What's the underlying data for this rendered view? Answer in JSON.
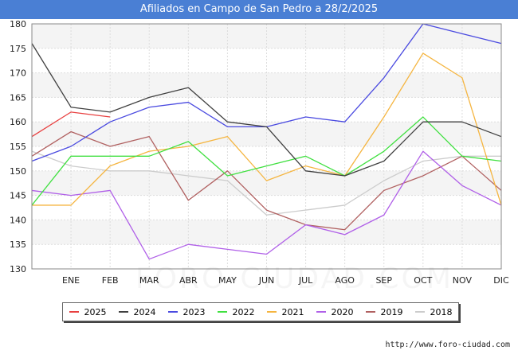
{
  "chart_data": {
    "type": "line",
    "title": "Afiliados en Campo de San Pedro a 28/2/2025",
    "xlabel": "",
    "ylabel": "",
    "x_ticks": [
      "",
      "ENE",
      "FEB",
      "MAR",
      "ABR",
      "MAY",
      "JUN",
      "JUL",
      "AGO",
      "SEP",
      "OCT",
      "NOV",
      "DIC"
    ],
    "ylim": [
      130,
      180
    ],
    "y_ticks": [
      130,
      135,
      140,
      145,
      150,
      155,
      160,
      165,
      170,
      175,
      180
    ],
    "grid": true,
    "legend_position": "bottom",
    "series": [
      {
        "name": "2025",
        "color": "#e84040",
        "values": [
          157,
          162,
          161
        ]
      },
      {
        "name": "2024",
        "color": "#404040",
        "values": [
          176,
          163,
          162,
          165,
          167,
          160,
          159,
          150,
          149,
          152,
          160,
          160,
          157
        ]
      },
      {
        "name": "2023",
        "color": "#4a4ae0",
        "values": [
          152,
          155,
          160,
          163,
          164,
          159,
          159,
          161,
          160,
          169,
          180,
          178,
          176
        ]
      },
      {
        "name": "2022",
        "color": "#40e040",
        "values": [
          143,
          153,
          153,
          153,
          156,
          149,
          151,
          153,
          149,
          154,
          161,
          153,
          152
        ]
      },
      {
        "name": "2021",
        "color": "#f5b540",
        "values": [
          143,
          143,
          151,
          154,
          155,
          157,
          148,
          151,
          149,
          161,
          174,
          169,
          143
        ]
      },
      {
        "name": "2020",
        "color": "#b060e8",
        "values": [
          146,
          145,
          146,
          132,
          135,
          134,
          133,
          139,
          137,
          141,
          154,
          147,
          143
        ]
      },
      {
        "name": "2019",
        "color": "#b06060",
        "values": [
          153,
          158,
          155,
          157,
          144,
          150,
          142,
          139,
          138,
          146,
          149,
          153,
          146
        ]
      },
      {
        "name": "2018",
        "color": "#cccccc",
        "values": [
          154,
          151,
          150,
          150,
          149,
          148,
          141,
          142,
          143,
          148,
          152,
          153,
          153
        ]
      }
    ],
    "source": "http://www.foro-ciudad.com",
    "watermark": "FORO-CIUDAD.COM"
  }
}
